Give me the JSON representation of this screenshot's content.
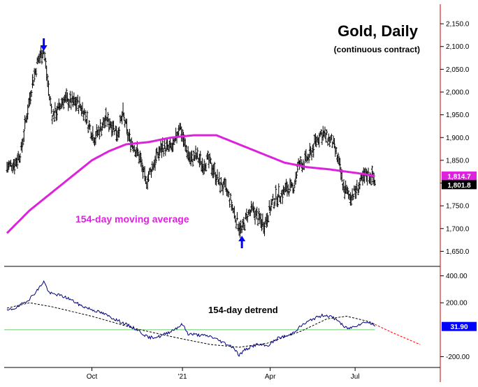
{
  "chart_data": [
    {
      "type": "ohlc",
      "title": "Gold, Daily",
      "subtitle": "(continuous contract)",
      "x_ticks": [
        "Oct",
        "'21",
        "Apr",
        "Jul"
      ],
      "y_ticks": [
        "2,150.0",
        "2,100.0",
        "2,050.0",
        "2,000.0",
        "1,950.0",
        "1,900.0",
        "1,850.0",
        "1,800.0",
        "1,750.0",
        "1,700.0",
        "1,650.0"
      ],
      "ylim": [
        1620,
        2190
      ],
      "last_price": "1,801.8",
      "ma_last": "1,814.7",
      "annotation_ma": "154-day moving average",
      "colors": {
        "price": "#000000",
        "ma": "#dd22dd",
        "arrow": "#0000ff",
        "axis": "#cc0000",
        "price_tag_bg": "#000000",
        "ma_tag_bg": "#dd22dd"
      },
      "price_anchors": [
        [
          0,
          1835
        ],
        [
          3,
          1845
        ],
        [
          5,
          1870
        ],
        [
          7,
          1950
        ],
        [
          9,
          2020
        ],
        [
          11,
          2070
        ],
        [
          13,
          2095
        ],
        [
          15,
          1990
        ],
        [
          16,
          1950
        ],
        [
          18,
          1960
        ],
        [
          20,
          1985
        ],
        [
          22,
          1980
        ],
        [
          25,
          1975
        ],
        [
          27,
          1960
        ],
        [
          29,
          1925
        ],
        [
          31,
          1900
        ],
        [
          33,
          1920
        ],
        [
          35,
          1940
        ],
        [
          37,
          1930
        ],
        [
          39,
          1910
        ],
        [
          41,
          1950
        ],
        [
          43,
          1900
        ],
        [
          45,
          1880
        ],
        [
          47,
          1855
        ],
        [
          49,
          1800
        ],
        [
          51,
          1830
        ],
        [
          53,
          1860
        ],
        [
          55,
          1880
        ],
        [
          57,
          1875
        ],
        [
          59,
          1880
        ],
        [
          61,
          1930
        ],
        [
          63,
          1880
        ],
        [
          65,
          1850
        ],
        [
          67,
          1860
        ],
        [
          69,
          1840
        ],
        [
          71,
          1850
        ],
        [
          73,
          1830
        ],
        [
          75,
          1800
        ],
        [
          77,
          1790
        ],
        [
          79,
          1760
        ],
        [
          81,
          1720
        ],
        [
          83,
          1695
        ],
        [
          85,
          1730
        ],
        [
          87,
          1740
        ],
        [
          89,
          1720
        ],
        [
          91,
          1710
        ],
        [
          93,
          1745
        ],
        [
          95,
          1770
        ],
        [
          97,
          1775
        ],
        [
          99,
          1790
        ],
        [
          101,
          1785
        ],
        [
          103,
          1840
        ],
        [
          105,
          1845
        ],
        [
          107,
          1860
        ],
        [
          109,
          1890
        ],
        [
          111,
          1910
        ],
        [
          113,
          1900
        ],
        [
          115,
          1890
        ],
        [
          117,
          1850
        ],
        [
          119,
          1790
        ],
        [
          121,
          1770
        ],
        [
          123,
          1780
        ],
        [
          125,
          1800
        ],
        [
          127,
          1820
        ],
        [
          129,
          1815
        ],
        [
          130,
          1805
        ]
      ],
      "ma_anchors": [
        [
          0,
          1690
        ],
        [
          8,
          1740
        ],
        [
          16,
          1780
        ],
        [
          24,
          1820
        ],
        [
          30,
          1850
        ],
        [
          36,
          1870
        ],
        [
          42,
          1885
        ],
        [
          50,
          1890
        ],
        [
          58,
          1900
        ],
        [
          66,
          1905
        ],
        [
          74,
          1905
        ],
        [
          82,
          1885
        ],
        [
          90,
          1865
        ],
        [
          98,
          1845
        ],
        [
          106,
          1835
        ],
        [
          114,
          1830
        ],
        [
          120,
          1825
        ],
        [
          126,
          1820
        ],
        [
          130,
          1815
        ]
      ],
      "arrows": [
        {
          "x": 13,
          "direction": "down"
        },
        {
          "x": 83,
          "direction": "up"
        }
      ],
      "x_tick_positions": [
        30,
        62,
        93,
        123
      ]
    },
    {
      "type": "line",
      "title": "154-day detrend",
      "y_ticks": [
        "400.00",
        "200.00",
        "-200.00"
      ],
      "ylim": [
        -270,
        460
      ],
      "last_value": "31.90",
      "colors": {
        "line": "#000080",
        "cycle": "#ff0000",
        "zero": "#66cc66",
        "value_tag_bg": "#0000ff"
      },
      "detrend_anchors": [
        [
          0,
          140
        ],
        [
          4,
          170
        ],
        [
          8,
          230
        ],
        [
          11,
          300
        ],
        [
          13,
          360
        ],
        [
          15,
          270
        ],
        [
          18,
          260
        ],
        [
          22,
          230
        ],
        [
          26,
          180
        ],
        [
          30,
          150
        ],
        [
          34,
          120
        ],
        [
          38,
          80
        ],
        [
          42,
          40
        ],
        [
          46,
          0
        ],
        [
          50,
          -60
        ],
        [
          54,
          -50
        ],
        [
          58,
          -10
        ],
        [
          62,
          40
        ],
        [
          64,
          -30
        ],
        [
          68,
          -40
        ],
        [
          72,
          -50
        ],
        [
          76,
          -90
        ],
        [
          80,
          -130
        ],
        [
          82,
          -190
        ],
        [
          84,
          -150
        ],
        [
          88,
          -110
        ],
        [
          92,
          -120
        ],
        [
          96,
          -60
        ],
        [
          100,
          -40
        ],
        [
          104,
          30
        ],
        [
          108,
          80
        ],
        [
          112,
          110
        ],
        [
          114,
          100
        ],
        [
          117,
          70
        ],
        [
          119,
          20
        ],
        [
          121,
          10
        ],
        [
          123,
          30
        ],
        [
          127,
          60
        ],
        [
          130,
          31.9
        ]
      ],
      "cycle_anchors": [
        [
          0,
          160
        ],
        [
          8,
          200
        ],
        [
          16,
          170
        ],
        [
          30,
          100
        ],
        [
          45,
          10
        ],
        [
          60,
          -60
        ],
        [
          72,
          -110
        ],
        [
          82,
          -130
        ],
        [
          92,
          -100
        ],
        [
          104,
          -10
        ],
        [
          113,
          80
        ],
        [
          120,
          100
        ],
        [
          128,
          60
        ],
        [
          136,
          -20
        ],
        [
          146,
          -110
        ]
      ],
      "cycle_dash_from": 130,
      "x_tick_positions": [
        30,
        62,
        93,
        123
      ]
    }
  ]
}
